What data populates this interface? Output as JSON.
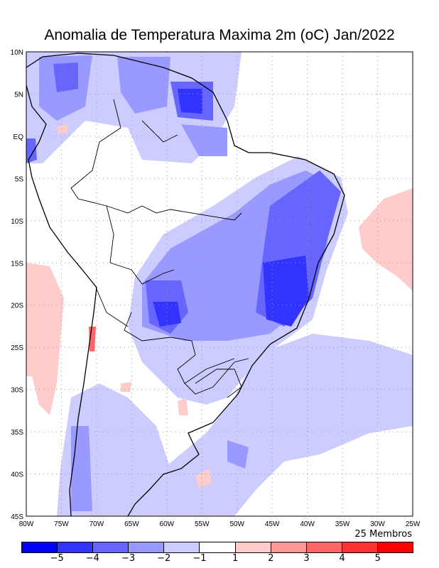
{
  "title": "Anomalia de Temperatura Maxima 2m (oC) Jan/2022",
  "members_label": "25 Membros",
  "lon_ticks": [
    "80W",
    "75W",
    "70W",
    "65W",
    "60W",
    "55W",
    "50W",
    "45W",
    "40W",
    "35W",
    "30W",
    "25W"
  ],
  "lat_ticks": [
    "10N",
    "5N",
    "EQ",
    "5S",
    "10S",
    "15S",
    "20S",
    "25S",
    "30S",
    "35S",
    "40S",
    "45S"
  ],
  "colorbar": {
    "labels": [
      "-5",
      "-4",
      "-3",
      "-2",
      "-1",
      "1",
      "2",
      "3",
      "4",
      "5"
    ],
    "colors": [
      "#0000ff",
      "#3333ff",
      "#6666ff",
      "#9999ff",
      "#ccccff",
      "#ffffff",
      "#ffcccc",
      "#ff9999",
      "#ff6666",
      "#ff3333",
      "#ff0000"
    ]
  }
}
